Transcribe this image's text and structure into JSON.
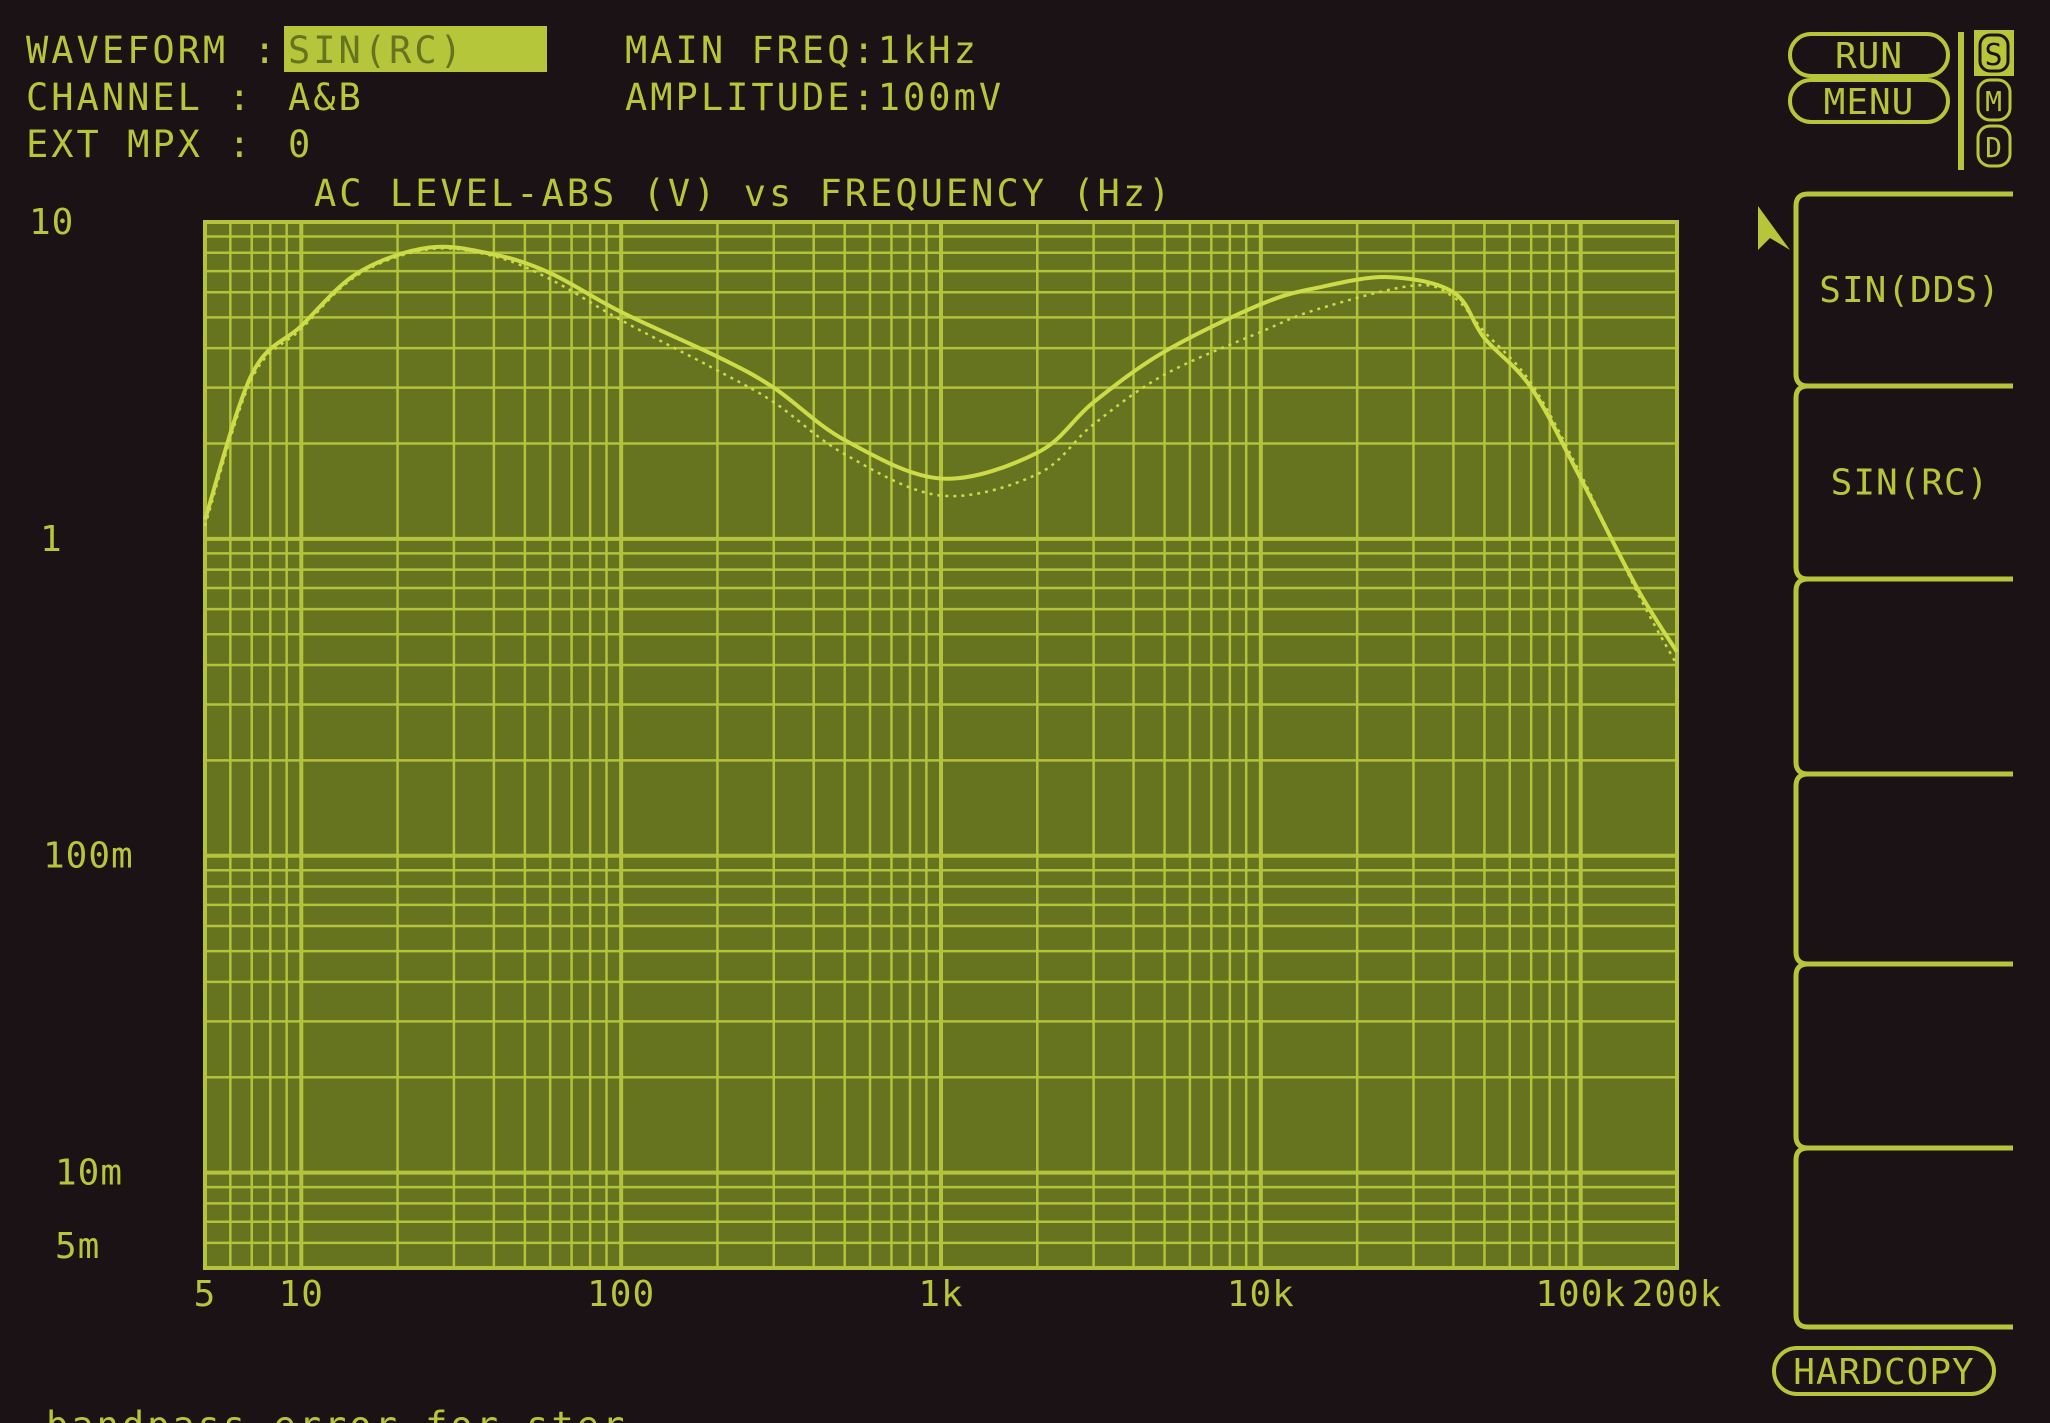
{
  "header": {
    "waveform_label": "WAVEFORM :",
    "waveform_value": "SIN(RC)",
    "channel_label": "CHANNEL  :",
    "channel_value": "A&B",
    "ext_mpx_label": "EXT MPX  :",
    "ext_mpx_value": "0",
    "main_freq": "MAIN FREQ:1kHz",
    "amplitude": "AMPLITUDE:100mV"
  },
  "controls": {
    "run": "RUN",
    "menu": "MENU",
    "mode_s": "S",
    "mode_m": "M",
    "mode_d": "D",
    "active_mode": "S",
    "hardcopy": "HARDCOPY"
  },
  "softkeys": [
    "SIN(DDS)",
    "SIN(RC)",
    "",
    "",
    "",
    ""
  ],
  "footer_text": "bandpass error for ster",
  "colors": {
    "background": "#1a1214",
    "phosphor": "#b6c63a",
    "plot_fill": "#67741f",
    "grid": "#b3c33c"
  },
  "chart_data": {
    "type": "line",
    "title": "AC LEVEL-ABS (V) vs FREQUENCY (Hz)",
    "x_scale": "log",
    "y_scale": "log",
    "xlim": [
      5,
      200000
    ],
    "ylim": [
      0.005,
      10
    ],
    "grid": true,
    "x_ticks": [
      {
        "value": 5,
        "label": "5"
      },
      {
        "value": 10,
        "label": "10"
      },
      {
        "value": 100,
        "label": "100"
      },
      {
        "value": 1000,
        "label": "1k"
      },
      {
        "value": 10000,
        "label": "10k"
      },
      {
        "value": 100000,
        "label": "100k"
      },
      {
        "value": 200000,
        "label": "200k"
      }
    ],
    "y_ticks": [
      {
        "value": 10,
        "label": "10"
      },
      {
        "value": 1,
        "label": "1"
      },
      {
        "value": 0.1,
        "label": "100m"
      },
      {
        "value": 0.01,
        "label": "10m"
      },
      {
        "value": 0.005,
        "label": "5m"
      }
    ],
    "series": [
      {
        "style": "solid",
        "x": [
          5,
          7,
          10,
          15,
          25,
          40,
          60,
          100,
          200,
          300,
          500,
          1000,
          2000,
          3000,
          5000,
          10000,
          15000,
          25000,
          40000,
          50000,
          70000,
          100000,
          150000,
          200000
        ],
        "y": [
          1.15,
          3.3,
          4.7,
          6.9,
          8.3,
          7.9,
          6.9,
          5.2,
          3.76,
          3.0,
          2.05,
          1.55,
          1.87,
          2.7,
          3.9,
          5.5,
          6.2,
          6.7,
          6.0,
          4.3,
          3.0,
          1.55,
          0.7,
          0.44
        ]
      },
      {
        "style": "dotted",
        "x": [
          5,
          7,
          10,
          15,
          25,
          40,
          60,
          100,
          200,
          300,
          500,
          1000,
          2000,
          3000,
          5000,
          10000,
          15000,
          30000,
          40000,
          50000,
          70000,
          100000,
          150000,
          200000
        ],
        "y": [
          1.1,
          3.2,
          4.6,
          6.8,
          8.2,
          7.8,
          6.6,
          4.9,
          3.4,
          2.7,
          1.85,
          1.37,
          1.6,
          2.3,
          3.3,
          4.5,
          5.3,
          6.3,
          5.8,
          4.5,
          3.1,
          1.6,
          0.68,
          0.4
        ]
      }
    ]
  }
}
